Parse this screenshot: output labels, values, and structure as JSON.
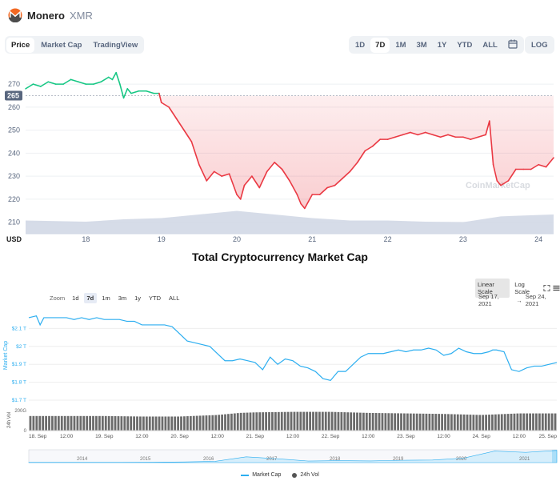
{
  "header": {
    "coin_name": "Monero",
    "coin_symbol": "XMR"
  },
  "tabs": [
    "Price",
    "Market Cap",
    "TradingView"
  ],
  "range_tabs": [
    "1D",
    "7D",
    "1M",
    "3M",
    "1Y",
    "YTD",
    "ALL"
  ],
  "log_label": "LOG",
  "tmc": {
    "title": "Total Cryptocurrency Market Cap",
    "scale_linear": "Linear Scale",
    "scale_log": "Log Scale",
    "zoom_label": "Zoom",
    "zoom_options": [
      "1d",
      "7d",
      "1m",
      "3m",
      "1y",
      "YTD",
      "ALL"
    ],
    "date_from": "Sep 17, 2021",
    "date_arrow": "→",
    "date_to": "Sep 24, 2021",
    "legend_market_cap": "Market Cap",
    "legend_vol": "24h Vol"
  },
  "colors": {
    "up_green": "#16c784",
    "down_red": "#ea3943",
    "cmc_blue": "#2caef0",
    "volume_grey": "#cfd6e4",
    "accent_bg": "#eff2f5"
  },
  "chart_data": [
    {
      "type": "line",
      "title": "",
      "xlabel": "USD",
      "ylabel": "",
      "x_ticks": [
        "18",
        "19",
        "20",
        "21",
        "22",
        "23",
        "24"
      ],
      "y_ticks": [
        210,
        220,
        230,
        240,
        250,
        260,
        270
      ],
      "ylim": [
        205,
        277
      ],
      "reference_price": 265,
      "reference_label": "265",
      "watermark": "CoinMarketCap",
      "x_day_range": [
        17.2,
        24.2
      ],
      "series": [
        {
          "values_x_day": [
            17.2,
            17.3,
            17.4,
            17.5,
            17.6,
            17.7,
            17.8,
            17.9,
            18.0,
            18.1,
            18.2,
            18.3,
            18.35,
            18.4,
            18.45,
            18.5,
            18.55,
            18.6,
            18.7,
            18.8,
            18.9,
            18.97,
            19.0,
            19.1,
            19.2,
            19.3,
            19.4,
            19.5,
            19.6,
            19.7,
            19.8,
            19.9,
            20.0,
            20.05,
            20.1,
            20.2,
            20.3,
            20.4,
            20.5,
            20.6,
            20.7,
            20.8,
            20.85,
            20.9,
            21.0,
            21.1,
            21.2,
            21.3,
            21.4,
            21.5,
            21.6,
            21.7,
            21.8,
            21.9,
            22.0,
            22.1,
            22.2,
            22.3,
            22.4,
            22.5,
            22.6,
            22.7,
            22.8,
            22.9,
            23.0,
            23.1,
            23.2,
            23.3,
            23.35,
            23.4,
            23.45,
            23.5,
            23.6,
            23.7,
            23.8,
            23.9,
            24.0,
            24.1,
            24.2
          ],
          "values_price": [
            268,
            270,
            269,
            271,
            270,
            270,
            272,
            271,
            270,
            270,
            271,
            273,
            272,
            275,
            270,
            264,
            268,
            266,
            267,
            267,
            266,
            266,
            262,
            260,
            255,
            250,
            245,
            235,
            228,
            232,
            230,
            231,
            222,
            220,
            226,
            230,
            225,
            232,
            236,
            233,
            228,
            222,
            218,
            216,
            222,
            222,
            225,
            226,
            229,
            232,
            236,
            241,
            243,
            246,
            246,
            247,
            248,
            249,
            248,
            249,
            248,
            247,
            248,
            247,
            247,
            246,
            247,
            248,
            254,
            235,
            228,
            226,
            228,
            233,
            233,
            233,
            235,
            234,
            238
          ]
        }
      ],
      "volume_series": {
        "values_x_day": [
          17.2,
          18.0,
          18.5,
          19.0,
          19.5,
          20.0,
          20.5,
          21.0,
          21.5,
          22.0,
          22.5,
          23.0,
          23.5,
          24.0,
          24.2
        ],
        "values_volume_relative": [
          0.55,
          0.5,
          0.6,
          0.65,
          0.8,
          0.95,
          0.8,
          0.65,
          0.55,
          0.55,
          0.5,
          0.48,
          0.72,
          0.78,
          0.8
        ]
      }
    },
    {
      "type": "line",
      "title": "Total Cryptocurrency Market Cap",
      "ylabel": "Market Cap",
      "volume_label": "24h Vol",
      "y_ticks": [
        "$2.1 T",
        "$2 T",
        "$1.9 T",
        "$1.8 T",
        "$1.7 T"
      ],
      "y_tick_values": [
        2.1,
        2.0,
        1.9,
        1.8,
        1.7
      ],
      "vol_ticks": [
        "200G",
        "0"
      ],
      "ylim": [
        1.7,
        2.2
      ],
      "x_ticks": [
        "18. Sep",
        "12:00",
        "19. Sep",
        "12:00",
        "20. Sep",
        "12:00",
        "21. Sep",
        "12:00",
        "22. Sep",
        "12:00",
        "23. Sep",
        "12:00",
        "24. Sep",
        "12:00",
        "25. Sep"
      ],
      "x_tick_days": [
        18.0,
        18.5,
        19.0,
        19.5,
        20.0,
        20.5,
        21.0,
        21.5,
        22.0,
        22.5,
        23.0,
        23.5,
        24.0,
        24.5,
        25.0
      ],
      "x_day_range": [
        18.0,
        25.0
      ],
      "series": [
        {
          "name": "Market Cap",
          "values_x_day": [
            18.0,
            18.1,
            18.15,
            18.2,
            18.3,
            18.4,
            18.5,
            18.6,
            18.7,
            18.8,
            18.9,
            19.0,
            19.1,
            19.2,
            19.3,
            19.4,
            19.5,
            19.6,
            19.7,
            19.8,
            19.9,
            20.0,
            20.1,
            20.2,
            20.3,
            20.4,
            20.5,
            20.6,
            20.7,
            20.8,
            20.9,
            21.0,
            21.1,
            21.2,
            21.3,
            21.4,
            21.5,
            21.6,
            21.7,
            21.8,
            21.9,
            22.0,
            22.1,
            22.2,
            22.3,
            22.4,
            22.5,
            22.6,
            22.7,
            22.8,
            22.9,
            23.0,
            23.1,
            23.2,
            23.3,
            23.4,
            23.5,
            23.6,
            23.7,
            23.8,
            23.9,
            24.0,
            24.1,
            24.15,
            24.2,
            24.3,
            24.4,
            24.5,
            24.6,
            24.7,
            24.8,
            24.9,
            25.0
          ],
          "values": [
            2.16,
            2.17,
            2.12,
            2.16,
            2.16,
            2.16,
            2.16,
            2.15,
            2.16,
            2.15,
            2.16,
            2.15,
            2.15,
            2.15,
            2.14,
            2.14,
            2.12,
            2.12,
            2.12,
            2.12,
            2.11,
            2.07,
            2.03,
            2.02,
            2.01,
            2.0,
            1.96,
            1.92,
            1.92,
            1.93,
            1.92,
            1.91,
            1.87,
            1.94,
            1.9,
            1.93,
            1.92,
            1.89,
            1.88,
            1.86,
            1.82,
            1.81,
            1.86,
            1.86,
            1.9,
            1.94,
            1.96,
            1.96,
            1.96,
            1.97,
            1.98,
            1.97,
            1.98,
            1.98,
            1.99,
            1.98,
            1.95,
            1.96,
            1.99,
            1.97,
            1.96,
            1.96,
            1.97,
            1.98,
            1.98,
            1.97,
            1.87,
            1.86,
            1.88,
            1.89,
            1.89,
            1.9,
            1.91
          ]
        },
        {
          "name": "24h Vol",
          "values_x_day": [
            18.0,
            18.5,
            19.0,
            19.5,
            20.0,
            20.5,
            20.8,
            21.0,
            21.5,
            22.0,
            22.5,
            23.0,
            23.5,
            24.0,
            24.5,
            25.0
          ],
          "values": [
            140,
            140,
            140,
            135,
            135,
            150,
            170,
            175,
            180,
            180,
            170,
            165,
            160,
            150,
            165,
            165
          ]
        }
      ],
      "navigator": {
        "x_ticks": [
          "2014",
          "2015",
          "2016",
          "2017",
          "2018",
          "2019",
          "2020",
          "2021"
        ],
        "values_relative": [
          0.02,
          0.02,
          0.02,
          0.02,
          0.03,
          0.05,
          0.1,
          0.45,
          0.3,
          0.12,
          0.15,
          0.13,
          0.18,
          0.2,
          0.35,
          0.9,
          0.8,
          0.95
        ]
      }
    }
  ]
}
